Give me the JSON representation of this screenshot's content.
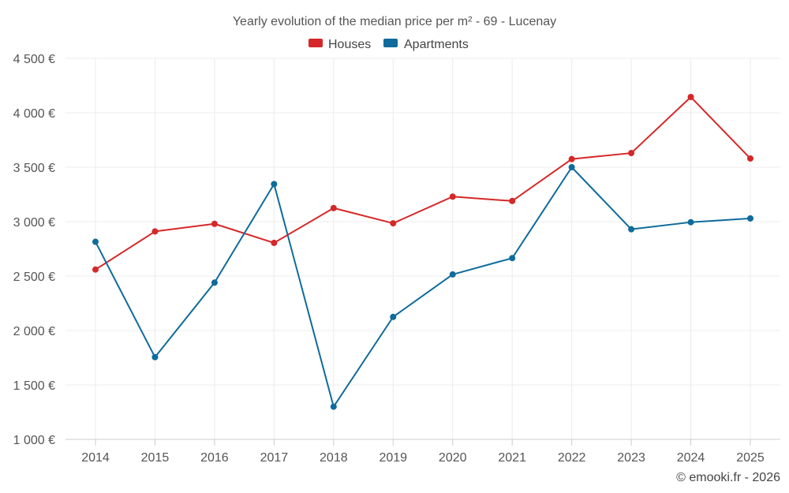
{
  "chart_data": {
    "type": "line",
    "title": "Yearly evolution of the median price per m² - 69 - Lucenay",
    "categories": [
      "2014",
      "2015",
      "2016",
      "2017",
      "2018",
      "2019",
      "2020",
      "2021",
      "2022",
      "2023",
      "2024",
      "2025"
    ],
    "series": [
      {
        "name": "Houses",
        "color": "#d62728",
        "values": [
          2560,
          2910,
          2980,
          2805,
          3125,
          2985,
          3230,
          3190,
          3575,
          3630,
          4145,
          3580
        ]
      },
      {
        "name": "Apartments",
        "color": "#0f6b9b",
        "values": [
          2815,
          1755,
          2440,
          3345,
          1300,
          2125,
          2515,
          2665,
          3500,
          2930,
          2995,
          3030
        ]
      }
    ],
    "ylim": [
      1000,
      4500
    ],
    "yticks": [
      1000,
      1500,
      2000,
      2500,
      3000,
      3500,
      4000,
      4500
    ],
    "ytick_labels": [
      "1 000 €",
      "1 500 €",
      "2 000 €",
      "2 500 €",
      "3 000 €",
      "3 500 €",
      "4 000 €",
      "4 500 €"
    ],
    "xlabel": "",
    "ylabel": "",
    "legend_position": "top-center",
    "grid": true
  },
  "credit": "© emooki.fr - 2026"
}
